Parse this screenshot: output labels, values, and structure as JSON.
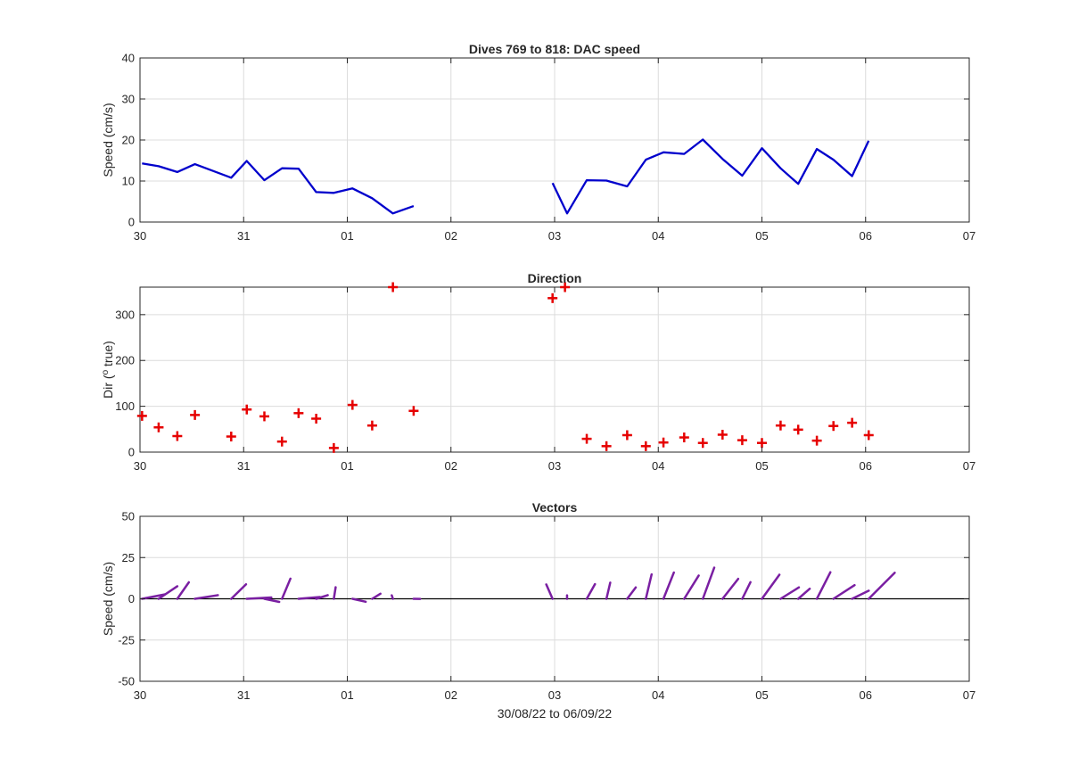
{
  "figure": {
    "xlabel": "30/08/22 to 06/09/22"
  },
  "chart_data": [
    {
      "type": "line",
      "title": "Dives 769 to 818: DAC speed",
      "xlabel": "",
      "ylabel": "Speed (cm/s)",
      "color": "#0000cc",
      "x_unit": "day",
      "x_start": "2022-08-30",
      "xlim": [
        0,
        8
      ],
      "ylim": [
        0,
        40
      ],
      "grid": true,
      "x_tick_values": [
        0,
        1,
        2,
        3,
        4,
        5,
        6,
        7,
        8
      ],
      "x_tick_labels": [
        "30",
        "31",
        "01",
        "02",
        "03",
        "04",
        "05",
        "06",
        "07"
      ],
      "y_tick_values": [
        0,
        10,
        20,
        30,
        40
      ],
      "y_tick_labels": [
        "0",
        "10",
        "20",
        "30",
        "40"
      ],
      "segments": [
        {
          "x": [
            0.02,
            0.18,
            0.36,
            0.53,
            0.88,
            1.03,
            1.2,
            1.37,
            1.53,
            1.7,
            1.87,
            2.05,
            2.24,
            2.44,
            2.64
          ],
          "y": [
            14.3,
            13.6,
            12.2,
            14.1,
            10.8,
            14.9,
            10.2,
            13.1,
            13.0,
            7.3,
            7.1,
            8.2,
            5.8,
            2.1,
            3.9
          ]
        },
        {
          "x": [
            3.98,
            4.12,
            4.31,
            4.5,
            4.7,
            4.88,
            5.05,
            5.25,
            5.43,
            5.62,
            5.81,
            6.0,
            6.18,
            6.35,
            6.53,
            6.69,
            6.87,
            7.03
          ],
          "y": [
            9.5,
            2.1,
            10.2,
            10.1,
            8.7,
            15.2,
            17.0,
            16.6,
            20.1,
            15.4,
            11.3,
            18.0,
            13.1,
            9.3,
            17.8,
            15.2,
            11.2,
            19.8
          ]
        }
      ]
    },
    {
      "type": "scatter",
      "title": "Direction",
      "xlabel": "",
      "ylabel": "Dir (",
      "ylabel_sup": "o",
      "ylabel_tail": " true)",
      "color": "#e60000",
      "marker": "+",
      "xlim": [
        0,
        8
      ],
      "ylim": [
        0,
        360
      ],
      "grid": true,
      "x_tick_values": [
        0,
        1,
        2,
        3,
        4,
        5,
        6,
        7,
        8
      ],
      "x_tick_labels": [
        "30",
        "31",
        "01",
        "02",
        "03",
        "04",
        "05",
        "06",
        "07"
      ],
      "y_tick_values": [
        0,
        100,
        200,
        300
      ],
      "y_tick_labels": [
        "0",
        "100",
        "200",
        "300"
      ],
      "points": {
        "x": [
          0.02,
          0.18,
          0.36,
          0.53,
          0.88,
          1.03,
          1.2,
          1.37,
          1.53,
          1.7,
          1.87,
          2.05,
          2.24,
          2.44,
          2.64,
          3.98,
          4.1,
          4.31,
          4.5,
          4.7,
          4.88,
          5.05,
          5.25,
          5.43,
          5.62,
          5.81,
          6.0,
          6.18,
          6.35,
          6.53,
          6.69,
          6.87,
          7.03
        ],
        "y": [
          79,
          54,
          35,
          81,
          34,
          93,
          78,
          23,
          85,
          73,
          9,
          103,
          58,
          360,
          90,
          336,
          360,
          29,
          13,
          37,
          13,
          21,
          32,
          20,
          38,
          26,
          20,
          58,
          49,
          25,
          57,
          64,
          37
        ]
      }
    },
    {
      "type": "vector",
      "title": "Vectors",
      "xlabel": "",
      "ylabel": "Speed (cm/s)",
      "color": "#7a1fa2",
      "baseline_color": "#000000",
      "xlim": [
        0,
        8
      ],
      "ylim": [
        -50,
        50
      ],
      "grid": true,
      "x_tick_values": [
        0,
        1,
        2,
        3,
        4,
        5,
        6,
        7,
        8
      ],
      "x_tick_labels": [
        "30",
        "31",
        "01",
        "02",
        "03",
        "04",
        "05",
        "06",
        "07"
      ],
      "y_tick_values": [
        -50,
        -25,
        0,
        25,
        50
      ],
      "y_tick_labels": [
        "-50",
        "-25",
        "0",
        "25",
        "50"
      ],
      "vectors": {
        "x": [
          0.02,
          0.18,
          0.36,
          0.53,
          0.88,
          1.03,
          1.2,
          1.37,
          1.53,
          1.7,
          1.87,
          2.05,
          2.24,
          2.44,
          2.64,
          3.98,
          4.12,
          4.31,
          4.5,
          4.7,
          4.88,
          5.05,
          5.25,
          5.43,
          5.62,
          5.81,
          6.0,
          6.18,
          6.35,
          6.53,
          6.69,
          6.87,
          7.03
        ],
        "u": [
          14.0,
          11.3,
          7.0,
          13.9,
          9.0,
          14.9,
          9.0,
          5.1,
          12.9,
          7.0,
          1.1,
          8.0,
          5.0,
          -0.7,
          3.9,
          -3.8,
          0.0,
          5.0,
          2.3,
          5.2,
          3.5,
          6.3,
          8.8,
          6.9,
          9.5,
          5.0,
          10.6,
          11.1,
          7.0,
          8.2,
          12.8,
          10.1,
          15.8
        ],
        "v": [
          2.7,
          7.6,
          10.0,
          2.2,
          8.8,
          0.8,
          -1.9,
          12.2,
          1.1,
          2.2,
          7.0,
          -1.8,
          3.1,
          2.1,
          -0.1,
          8.7,
          2.1,
          8.9,
          9.8,
          6.9,
          14.8,
          15.9,
          14.1,
          18.9,
          12.1,
          10.1,
          14.6,
          6.9,
          6.1,
          16.1,
          8.3,
          4.9,
          15.8
        ]
      }
    }
  ]
}
